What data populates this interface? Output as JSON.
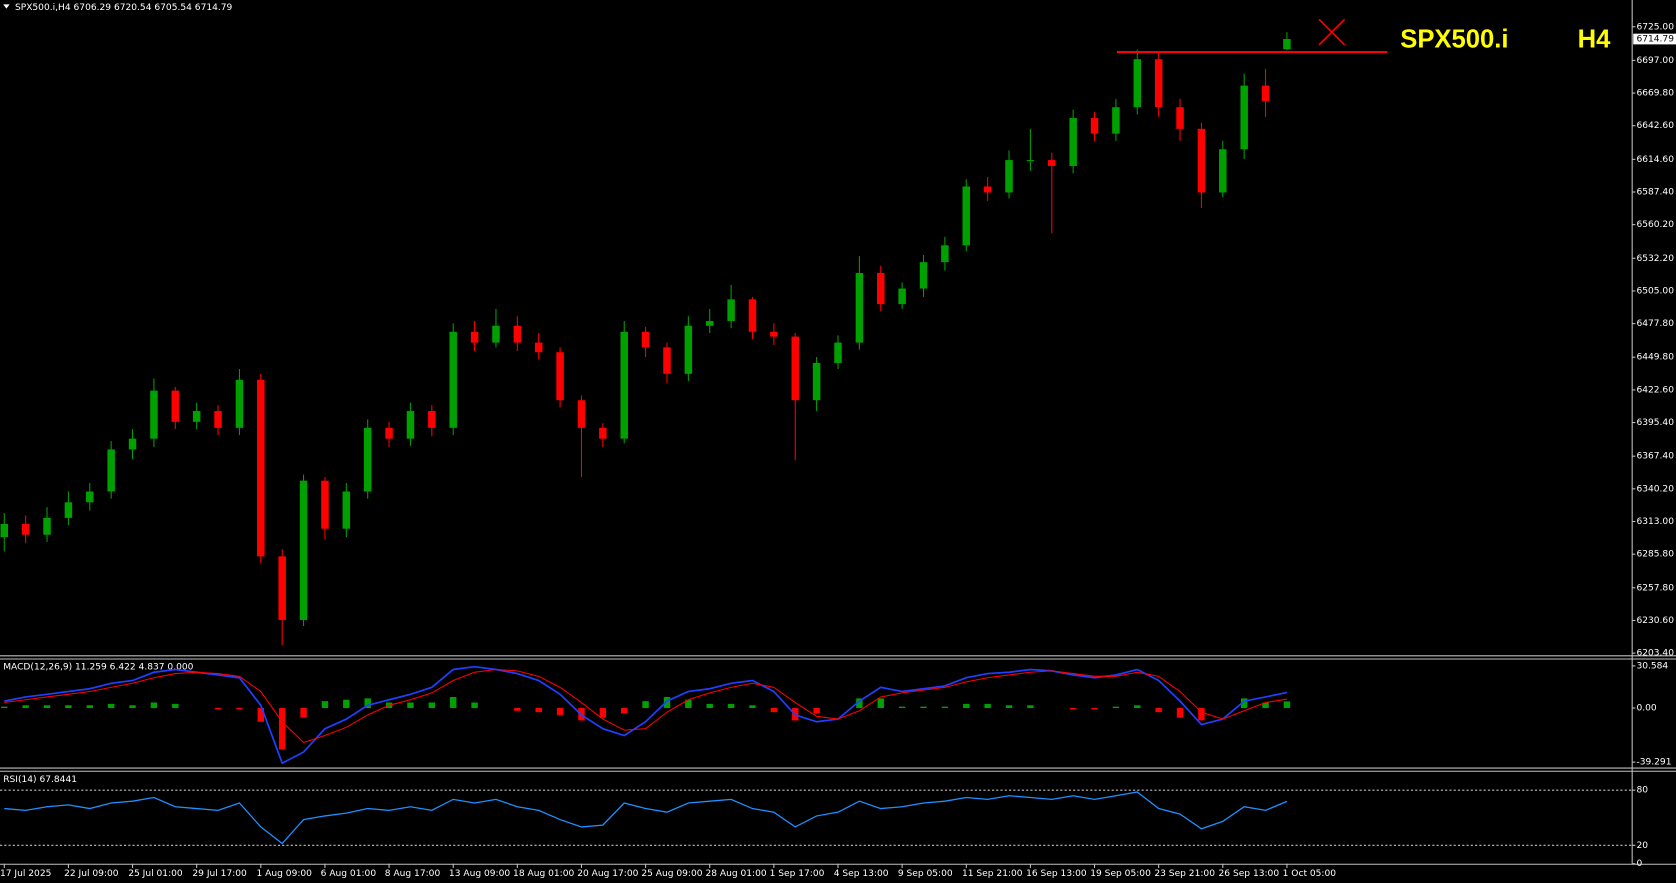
{
  "chart_data": [
    {
      "type": "candlestick",
      "title": "SPX500.i,H4 6706.29 6720.54 6705.54 6714.79",
      "annotations": [
        "SPX500.i",
        "H4"
      ],
      "annotation_color": "#ffff00",
      "last_price": 6714.79,
      "up_color": "#00a000",
      "down_color": "#ff0000",
      "grid": false,
      "xlim": [
        -0.2,
        76.15
      ],
      "xticks": [
        {
          "value": 0,
          "label": "17 Jul 2025"
        },
        {
          "value": 3,
          "label": "22 Jul 09:00"
        },
        {
          "value": 6,
          "label": "25 Jul 01:00"
        },
        {
          "value": 9,
          "label": "29 Jul 17:00"
        },
        {
          "value": 12,
          "label": "1 Aug 09:00"
        },
        {
          "value": 15,
          "label": "6 Aug 01:00"
        },
        {
          "value": 18,
          "label": "8 Aug 17:00"
        },
        {
          "value": 21,
          "label": "13 Aug 09:00"
        },
        {
          "value": 24,
          "label": "18 Aug 01:00"
        },
        {
          "value": 27,
          "label": "20 Aug 17:00"
        },
        {
          "value": 30,
          "label": "25 Aug 09:00"
        },
        {
          "value": 33,
          "label": "28 Aug 01:00"
        },
        {
          "value": 36,
          "label": "1 Sep 17:00"
        },
        {
          "value": 39,
          "label": "4 Sep 13:00"
        },
        {
          "value": 42,
          "label": "9 Sep 05:00"
        },
        {
          "value": 45,
          "label": "11 Sep 21:00"
        },
        {
          "value": 48,
          "label": "16 Sep 13:00"
        },
        {
          "value": 51,
          "label": "19 Sep 05:00"
        },
        {
          "value": 54,
          "label": "23 Sep 21:00"
        },
        {
          "value": 57,
          "label": "26 Sep 13:00"
        },
        {
          "value": 60,
          "label": "1 Oct 05:00"
        }
      ],
      "ylim": [
        6201.6,
        6733.9
      ],
      "yticks": [
        {
          "value": 6725,
          "label": "6725.00"
        },
        {
          "value": 6697,
          "label": "6697.00"
        },
        {
          "value": 6669.8,
          "label": "6669.80"
        },
        {
          "value": 6642.6,
          "label": "6642.60"
        },
        {
          "value": 6614.6,
          "label": "6614.60"
        },
        {
          "value": 6587.4,
          "label": "6587.40"
        },
        {
          "value": 6560.2,
          "label": "6560.20"
        },
        {
          "value": 6532.2,
          "label": "6532.20"
        },
        {
          "value": 6505,
          "label": "6505.00"
        },
        {
          "value": 6477.8,
          "label": "6477.80"
        },
        {
          "value": 6449.8,
          "label": "6449.80"
        },
        {
          "value": 6422.6,
          "label": "6422.60"
        },
        {
          "value": 6395.4,
          "label": "6395.40"
        },
        {
          "value": 6367.4,
          "label": "6367.40"
        },
        {
          "value": 6340.2,
          "label": "6340.20"
        },
        {
          "value": 6313,
          "label": "6313.00"
        },
        {
          "value": 6285.8,
          "label": "6285.80"
        },
        {
          "value": 6257.8,
          "label": "6257.80"
        },
        {
          "value": 6230.6,
          "label": "6230.60"
        },
        {
          "value": 6203.4,
          "label": "6203.40"
        }
      ],
      "horizontal_line": {
        "value": 6704,
        "color": "#ff0000"
      },
      "open": [
        6300,
        6311,
        6302,
        6316,
        6329,
        6338,
        6373,
        6382,
        6422,
        6396,
        6405,
        6391,
        6431,
        6284,
        6231,
        6347,
        6307,
        6338,
        6391,
        6382,
        6405,
        6391,
        6471,
        6462,
        6476,
        6462,
        6454,
        6414,
        6391,
        6382,
        6471,
        6458,
        6436,
        6476,
        6480,
        6498,
        6471,
        6467,
        6414,
        6445,
        6462,
        6520,
        6494,
        6507,
        6529,
        6543,
        6592,
        6587,
        6614,
        6614,
        6609,
        6649,
        6636,
        6658,
        6698,
        6658,
        6640,
        6587,
        6623,
        6676,
        6706.29
      ],
      "high": [
        6320,
        6318,
        6325,
        6338,
        6345,
        6380,
        6390,
        6432,
        6425,
        6412,
        6410,
        6440,
        6436,
        6290,
        6352,
        6350,
        6345,
        6398,
        6396,
        6412,
        6410,
        6478,
        6480,
        6490,
        6484,
        6470,
        6458,
        6418,
        6395,
        6480,
        6475,
        6462,
        6484,
        6490,
        6510,
        6500,
        6478,
        6470,
        6450,
        6468,
        6534,
        6526,
        6512,
        6535,
        6550,
        6598,
        6600,
        6622,
        6640,
        6620,
        6656,
        6654,
        6665,
        6706,
        6705,
        6665,
        6645,
        6630,
        6686,
        6690,
        6720.54
      ],
      "low": [
        6288,
        6295,
        6296,
        6310,
        6322,
        6332,
        6365,
        6375,
        6390,
        6390,
        6385,
        6385,
        6278,
        6210,
        6226,
        6298,
        6300,
        6332,
        6375,
        6376,
        6384,
        6385,
        6455,
        6458,
        6455,
        6448,
        6408,
        6350,
        6375,
        6378,
        6450,
        6428,
        6430,
        6470,
        6474,
        6465,
        6460,
        6364,
        6405,
        6440,
        6456,
        6488,
        6490,
        6500,
        6522,
        6538,
        6580,
        6582,
        6605,
        6553,
        6603,
        6630,
        6630,
        6652,
        6650,
        6630,
        6574,
        6583,
        6615,
        6650,
        6705.54
      ],
      "close": [
        6311,
        6302,
        6316,
        6329,
        6338,
        6373,
        6382,
        6422,
        6396,
        6405,
        6391,
        6431,
        6284,
        6231,
        6347,
        6307,
        6338,
        6391,
        6382,
        6405,
        6391,
        6471,
        6462,
        6476,
        6462,
        6454,
        6414,
        6391,
        6382,
        6471,
        6458,
        6436,
        6476,
        6480,
        6498,
        6471,
        6467,
        6414,
        6445,
        6462,
        6520,
        6494,
        6507,
        6529,
        6543,
        6592,
        6587,
        6614,
        6614,
        6609,
        6649,
        6636,
        6658,
        6698,
        6658,
        6640,
        6587,
        6623,
        6676,
        6663,
        6714.79
      ]
    },
    {
      "type": "macd",
      "title": "MACD(12,26,9) 11.259 6.422 4.837 0.000",
      "ylim": [
        -43.2,
        35.2
      ],
      "yticks": [
        30.584,
        {
          "value": 0,
          "label": "0.00"
        },
        -39.291
      ],
      "up_color": "#00a000",
      "down_color": "#ff0000",
      "histogram": [
        1,
        2,
        2,
        2,
        2,
        3,
        2,
        4,
        3,
        0,
        -1,
        -1,
        -10,
        -30,
        -7,
        5,
        6,
        7,
        4,
        4,
        4,
        8,
        4,
        0,
        -2,
        -3,
        -5,
        -9,
        -7,
        -4,
        5,
        8,
        6,
        3,
        3,
        2,
        -3,
        -9,
        -4,
        0,
        7,
        7,
        1,
        1,
        1,
        3,
        3,
        2,
        2,
        0,
        -1,
        -1,
        1,
        2,
        -3,
        -7,
        -9,
        0,
        7,
        4,
        4.837
      ],
      "series": [
        {
          "color": "#2040ff",
          "values": [
            5,
            8,
            10,
            12,
            14,
            18,
            20,
            26,
            28,
            26,
            24,
            22,
            2,
            -40,
            -32,
            -15,
            -8,
            2,
            6,
            10,
            15,
            28,
            30,
            28,
            25,
            20,
            10,
            -5,
            -15,
            -20,
            -10,
            5,
            12,
            14,
            18,
            20,
            12,
            -5,
            -10,
            -8,
            5,
            15,
            12,
            14,
            16,
            22,
            25,
            26,
            28,
            27,
            24,
            22,
            24,
            28,
            20,
            5,
            -12,
            -8,
            5,
            8,
            11.259
          ]
        },
        {
          "color": "#ff0000",
          "values": [
            4,
            6,
            8,
            10,
            12,
            15,
            18,
            22,
            25,
            26,
            25,
            23,
            12,
            -10,
            -25,
            -20,
            -14,
            -5,
            2,
            6,
            11,
            20,
            26,
            28,
            27,
            23,
            15,
            4,
            -8,
            -16,
            -15,
            -3,
            6,
            11,
            15,
            18,
            15,
            4,
            -6,
            -8,
            -2,
            8,
            11,
            13,
            15,
            19,
            22,
            24,
            26,
            27,
            25,
            23,
            23,
            26,
            23,
            12,
            -3,
            -8,
            -2,
            4,
            6.422
          ]
        }
      ]
    },
    {
      "type": "rsi",
      "title": "RSI(14) 67.8441",
      "ylim": [
        0,
        100
      ],
      "yticks": [
        80,
        20,
        0
      ],
      "levels": [
        80,
        20
      ],
      "color": "#1e90ff",
      "values": [
        60,
        58,
        62,
        64,
        60,
        66,
        68,
        72,
        62,
        60,
        58,
        66,
        40,
        22,
        48,
        52,
        55,
        60,
        58,
        62,
        58,
        70,
        66,
        70,
        62,
        58,
        48,
        40,
        42,
        66,
        60,
        56,
        66,
        68,
        70,
        60,
        56,
        40,
        52,
        56,
        68,
        60,
        62,
        66,
        68,
        72,
        70,
        74,
        72,
        70,
        74,
        70,
        74,
        78,
        60,
        54,
        38,
        46,
        62,
        58,
        67.8441
      ]
    }
  ]
}
